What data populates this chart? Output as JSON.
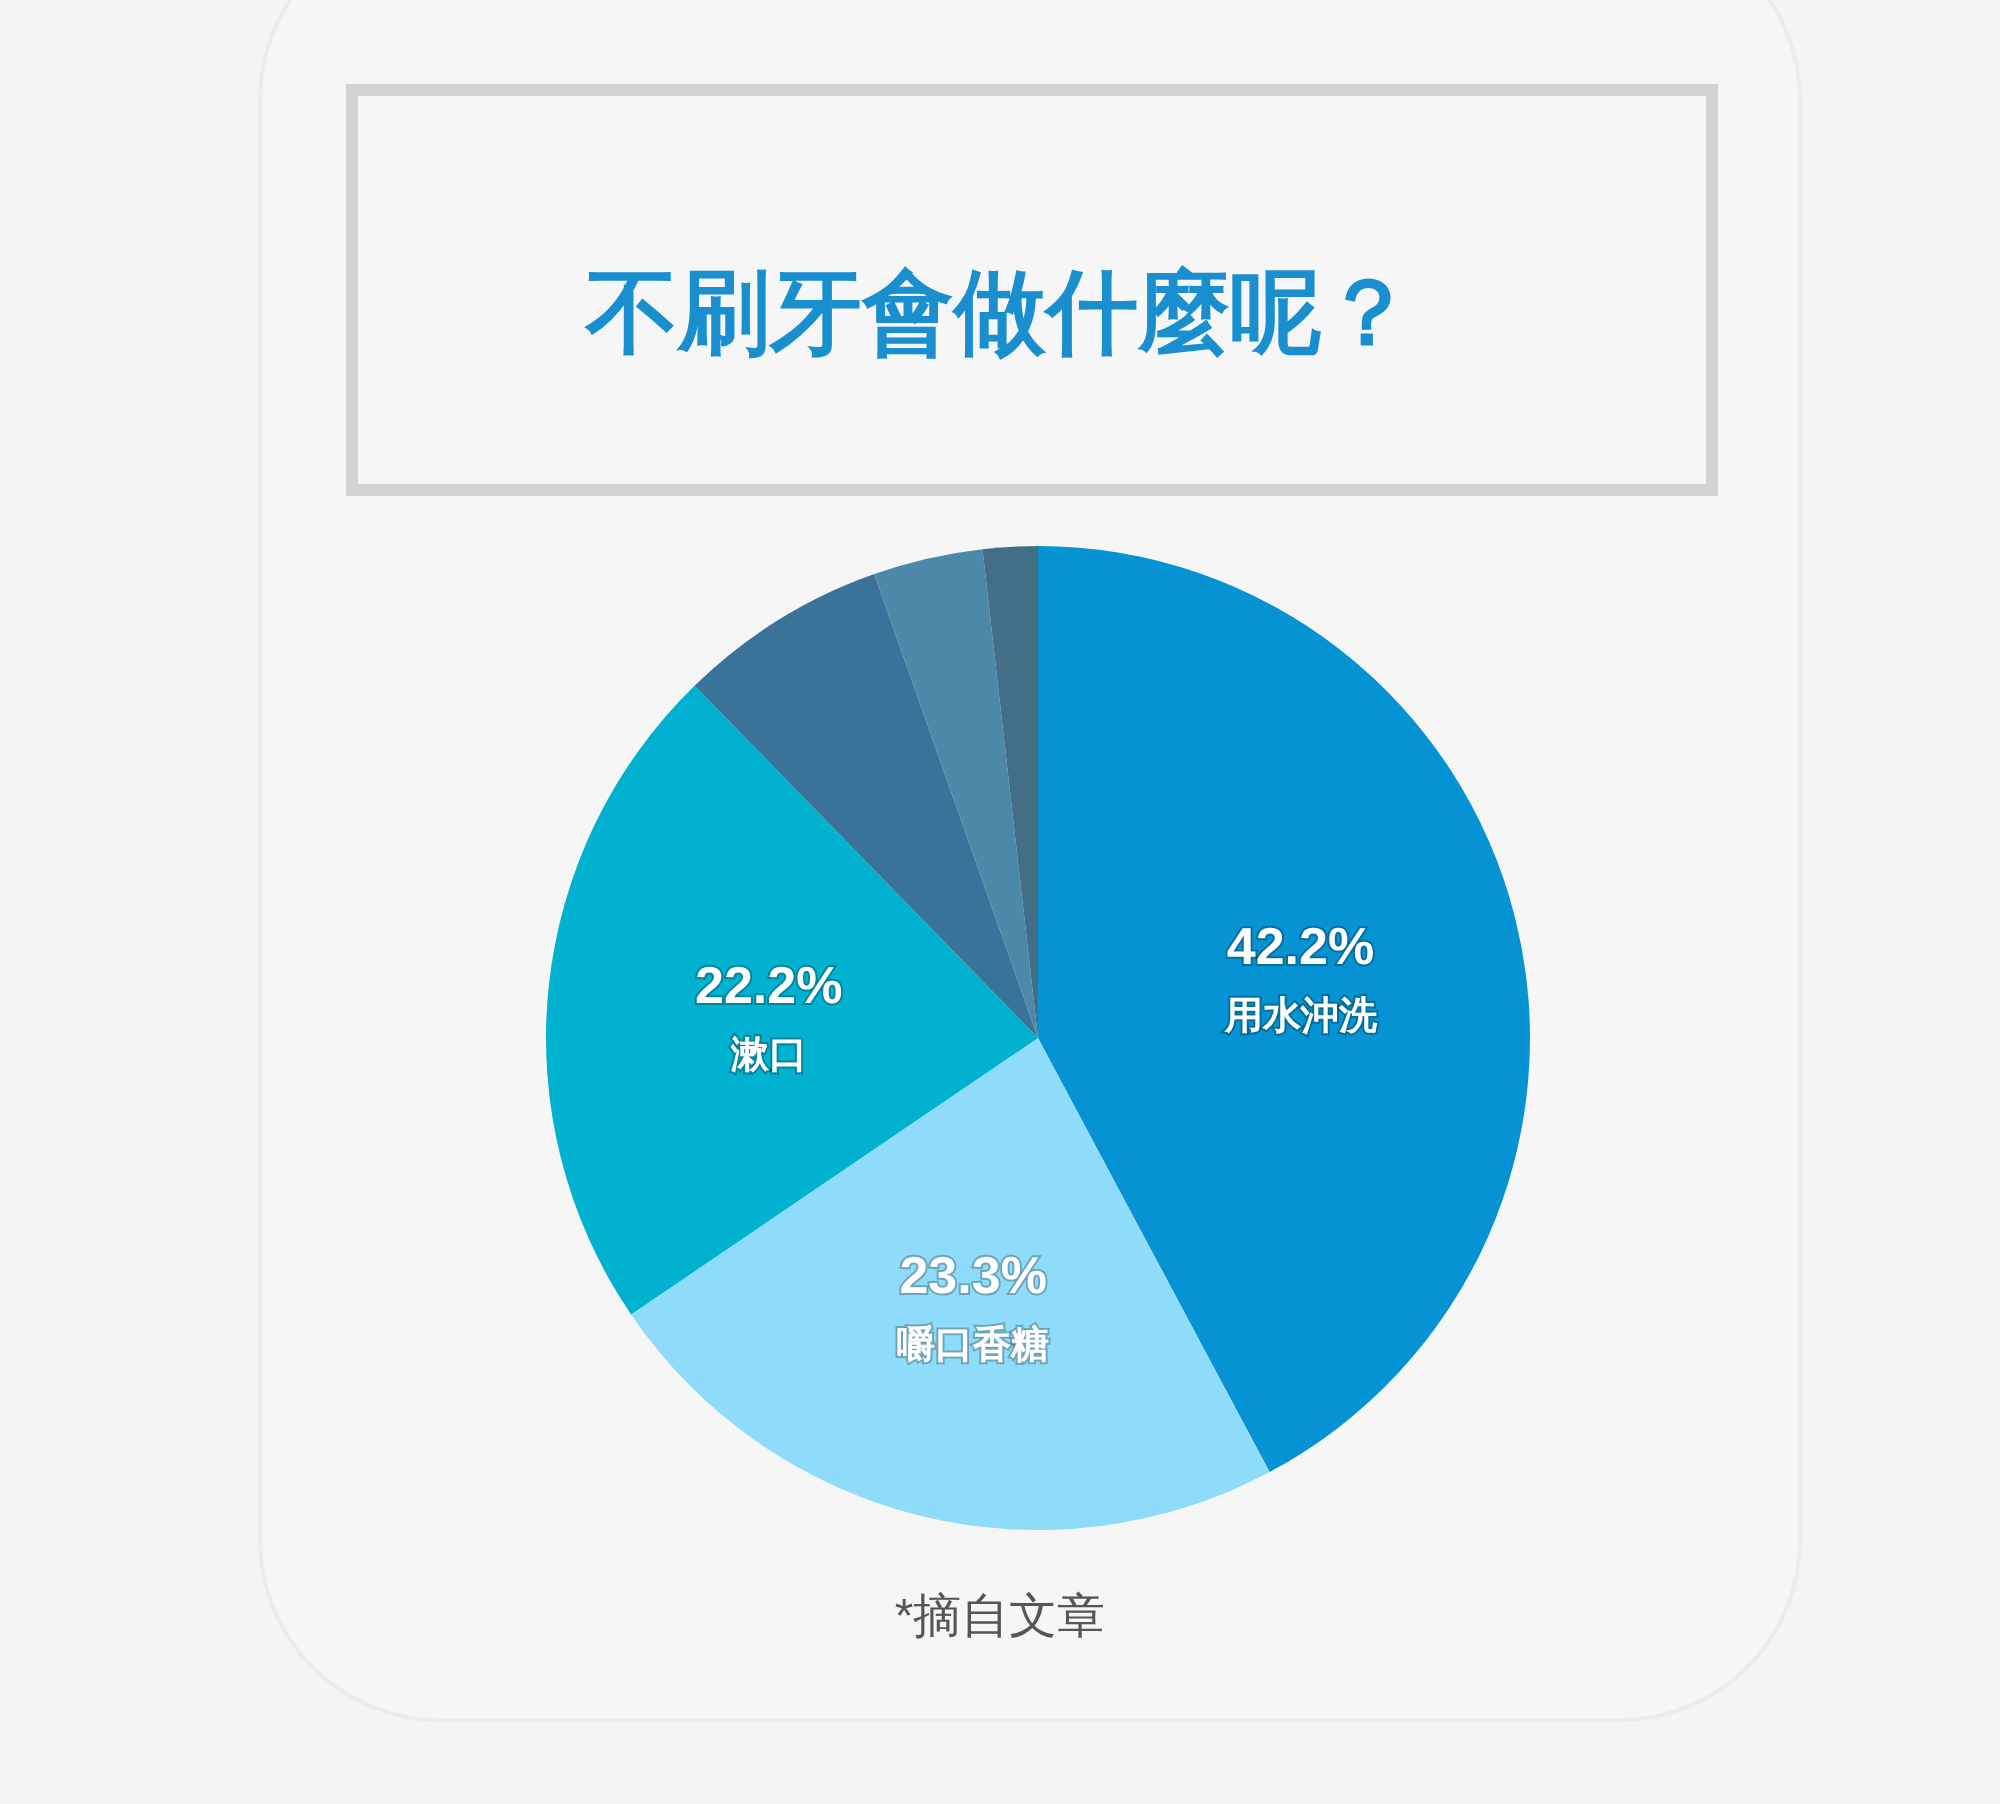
{
  "chart_data": {
    "type": "pie",
    "title": "不刷牙會做什麼呢？",
    "categories": [
      "用水沖洗",
      "嚼口香糖",
      "漱口",
      null,
      null,
      null
    ],
    "values": [
      42.2,
      23.3,
      22.2,
      6.9,
      3.6,
      1.8
    ],
    "value_labels": [
      "42.2%",
      "23.3%",
      "22.2%",
      null,
      null,
      null
    ],
    "colors": [
      "#0593d3",
      "#8fdcfa",
      "#00b2d0",
      "#3a7399",
      "#4c88a8",
      "#436f86"
    ],
    "annotations": [
      "*摘自文章"
    ]
  }
}
